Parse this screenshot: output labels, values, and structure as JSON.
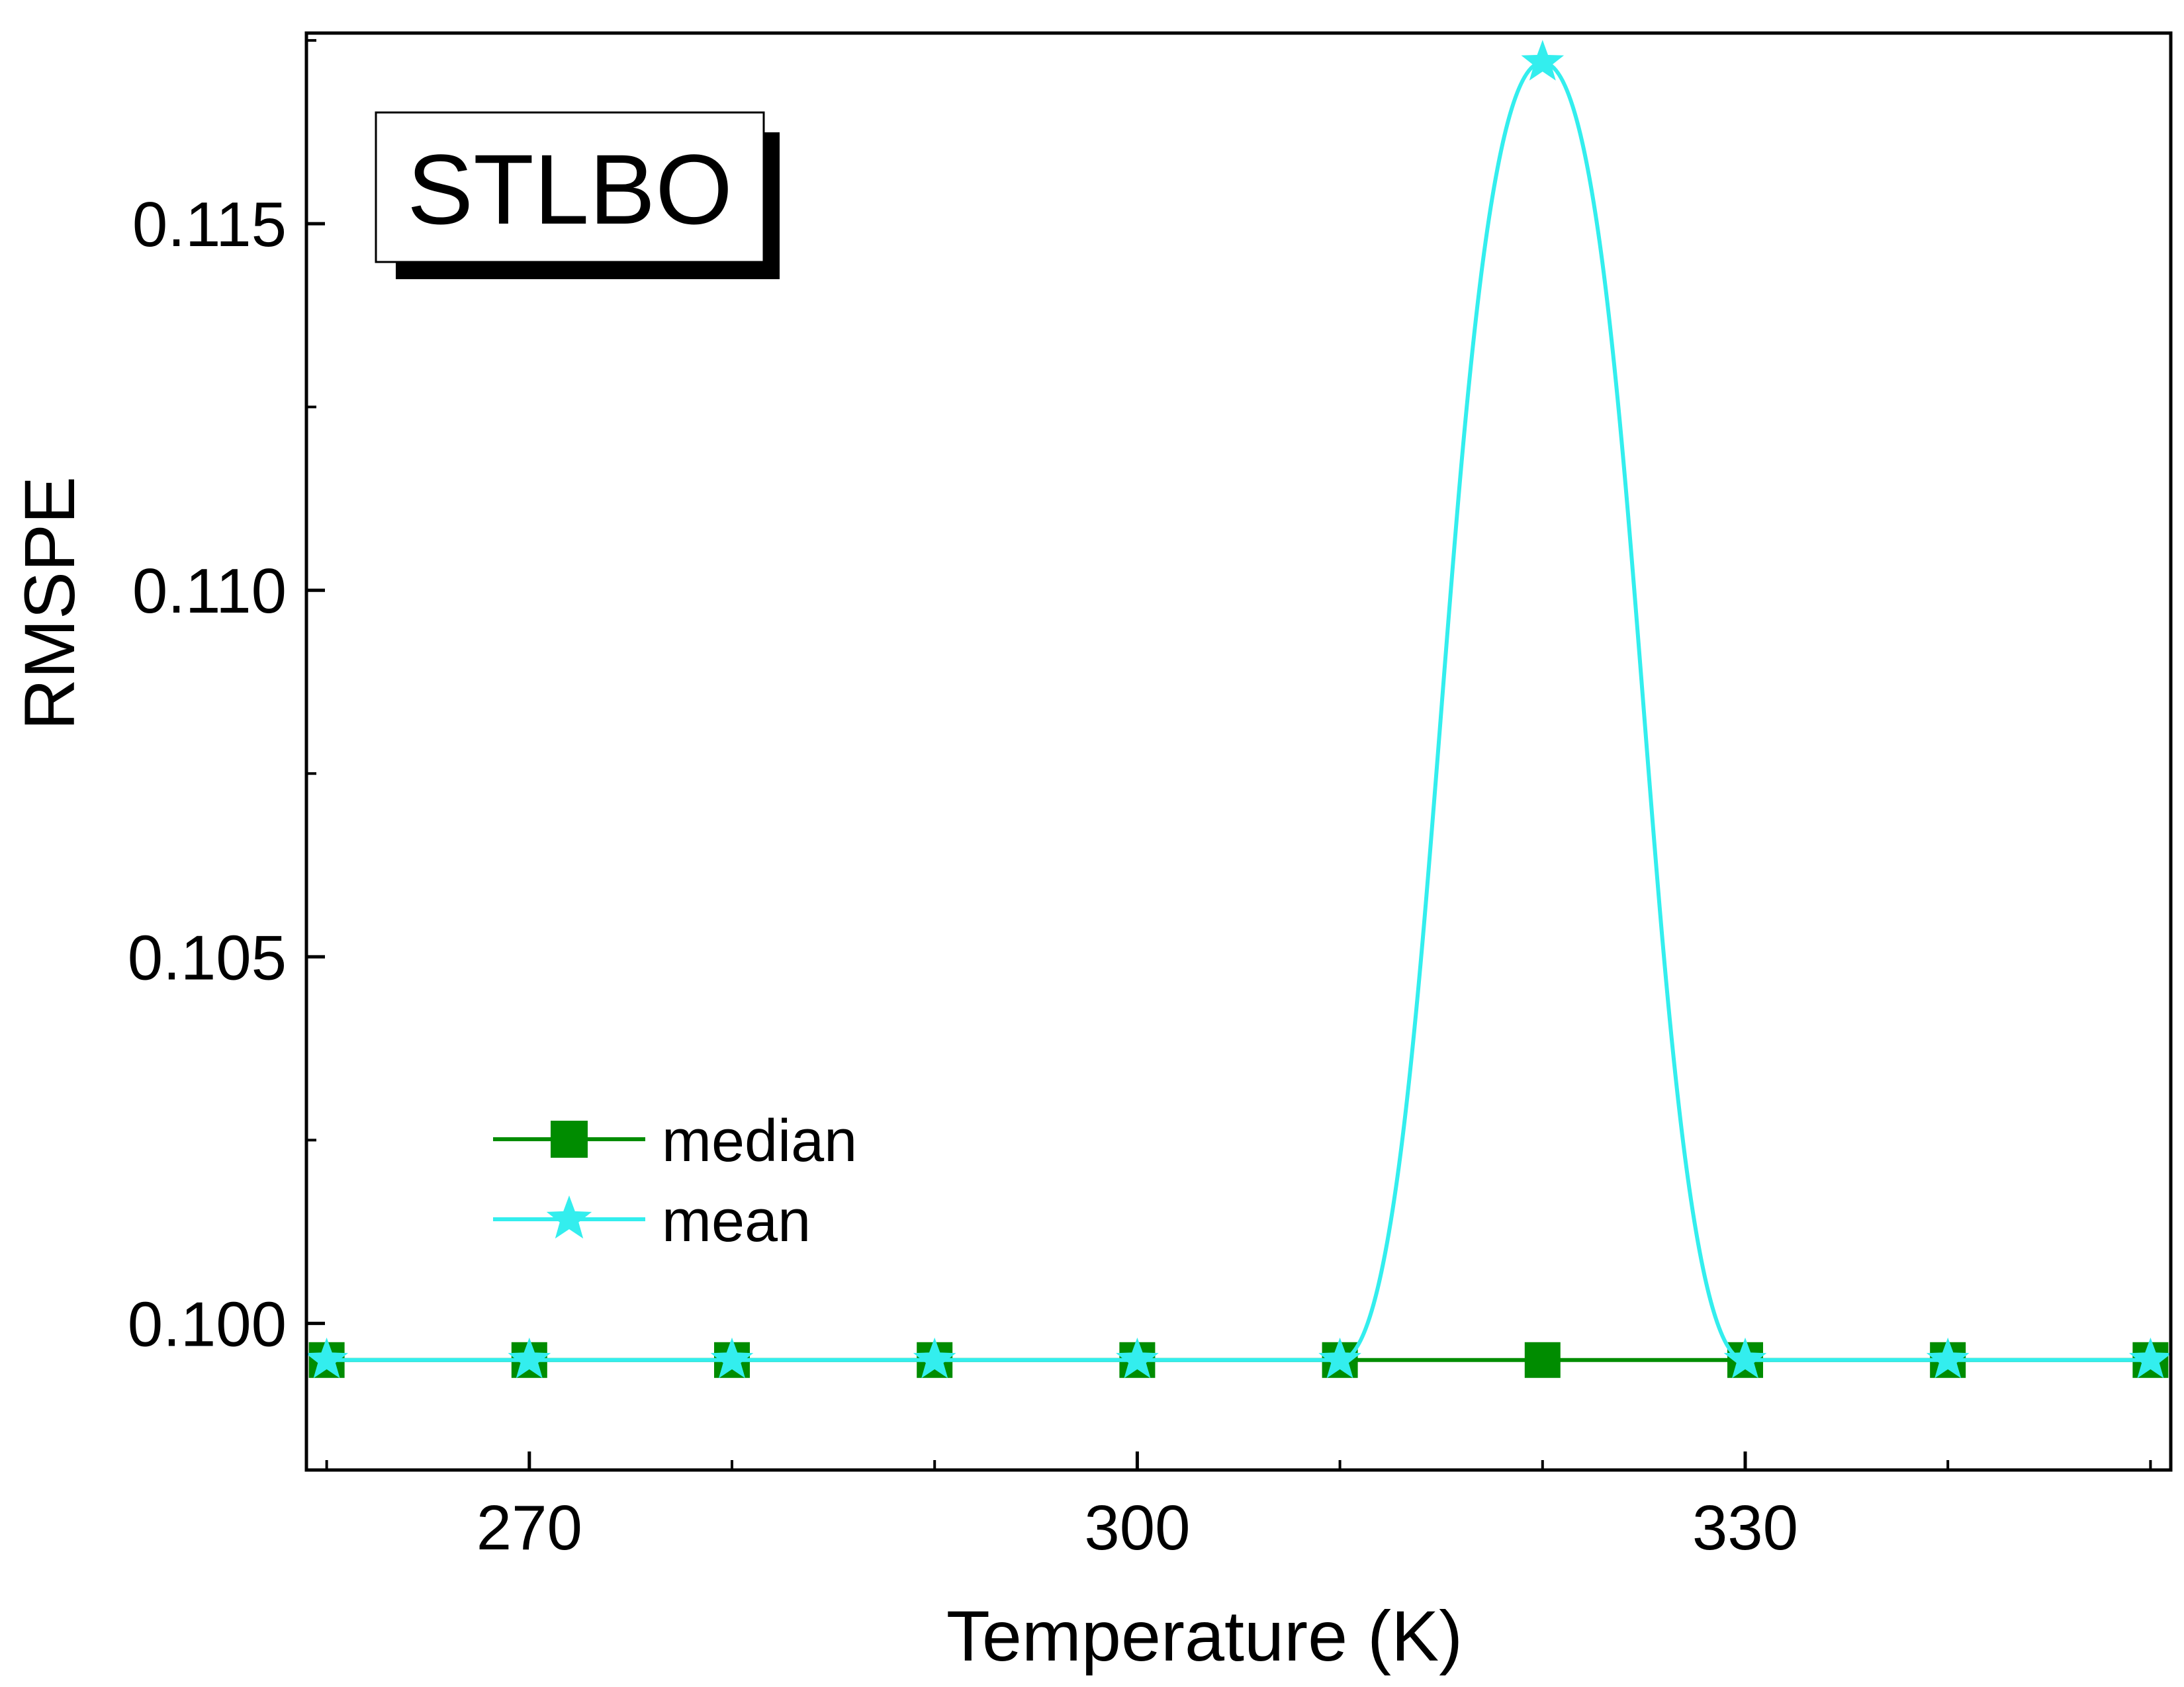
{
  "chart_data": {
    "type": "line",
    "title": "",
    "annotation": "STLBO",
    "xlabel": "Temperature (K)",
    "ylabel": "RMSPE",
    "xlim": [
      259,
      351
    ],
    "ylim": [
      0.098,
      0.1176
    ],
    "x_ticks": [
      270,
      300,
      330
    ],
    "x_tick_labels": [
      "270",
      "300",
      "330"
    ],
    "x_minor_ticks": [
      260,
      280,
      290,
      310,
      320,
      340,
      350
    ],
    "y_ticks": [
      0.1,
      0.105,
      0.11,
      0.115
    ],
    "y_tick_labels": [
      "0.100",
      "0.105",
      "0.110",
      "0.115"
    ],
    "y_minor_ticks": [
      0.0975,
      0.1025,
      0.1075,
      0.1125,
      0.1175
    ],
    "grid": false,
    "legend_position": "lower-left",
    "x": [
      260,
      270,
      280,
      290,
      300,
      310,
      320,
      330,
      340,
      350
    ],
    "series": [
      {
        "name": "median",
        "marker": "square",
        "color": "#008c00",
        "smooth": false,
        "values": [
          0.0995,
          0.0995,
          0.0995,
          0.0995,
          0.0995,
          0.0995,
          0.0995,
          0.0995,
          0.0995,
          0.0995
        ]
      },
      {
        "name": "mean",
        "marker": "star",
        "color": "#33eeee",
        "smooth": true,
        "values": [
          0.0995,
          0.0995,
          0.0995,
          0.0995,
          0.0995,
          0.0995,
          0.1172,
          0.0995,
          0.0995,
          0.0995
        ]
      }
    ]
  }
}
